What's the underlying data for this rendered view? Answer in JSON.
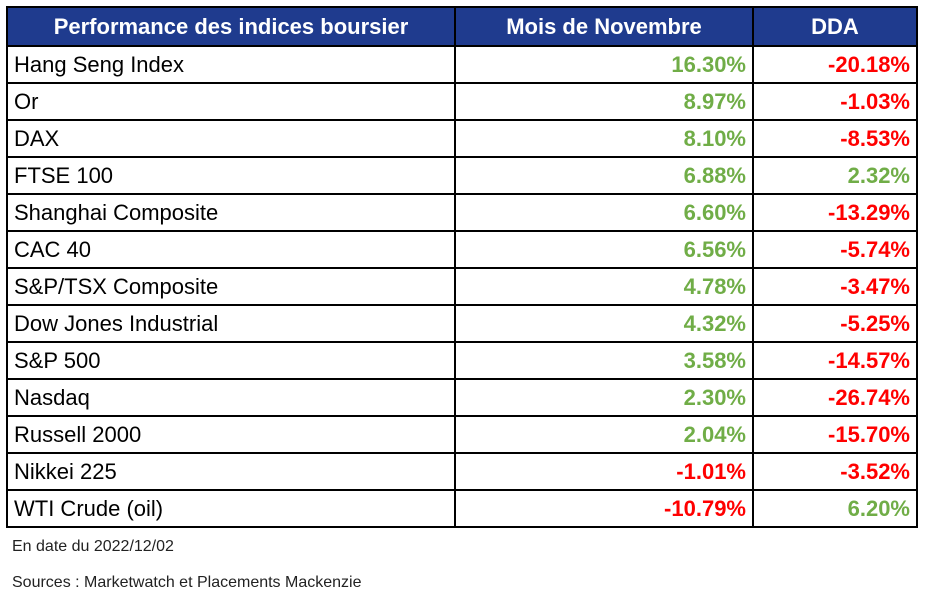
{
  "chart_data": {
    "type": "table",
    "columns": [
      "Performance des indices boursier",
      "Mois de Novembre",
      "DDA"
    ],
    "rows": [
      {
        "name": "Hang Seng Index",
        "month": "16.30%",
        "ytd": "-20.18%"
      },
      {
        "name": "Or",
        "month": "8.97%",
        "ytd": "-1.03%"
      },
      {
        "name": "DAX",
        "month": "8.10%",
        "ytd": "-8.53%"
      },
      {
        "name": "FTSE 100",
        "month": "6.88%",
        "ytd": "2.32%"
      },
      {
        "name": "Shanghai Composite",
        "month": "6.60%",
        "ytd": "-13.29%"
      },
      {
        "name": "CAC 40",
        "month": "6.56%",
        "ytd": "-5.74%"
      },
      {
        "name": "S&P/TSX Composite",
        "month": "4.78%",
        "ytd": "-3.47%"
      },
      {
        "name": "Dow Jones Industrial",
        "month": "4.32%",
        "ytd": "-5.25%"
      },
      {
        "name": "S&P 500",
        "month": "3.58%",
        "ytd": "-14.57%"
      },
      {
        "name": "Nasdaq",
        "month": "2.30%",
        "ytd": "-26.74%"
      },
      {
        "name": "Russell 2000",
        "month": "2.04%",
        "ytd": "-15.70%"
      },
      {
        "name": "Nikkei 225",
        "month": "-1.01%",
        "ytd": "-3.52%"
      },
      {
        "name": "WTI Crude (oil)",
        "month": "-10.79%",
        "ytd": "6.20%"
      }
    ],
    "colors": {
      "header_bg": "#1f3b8e",
      "header_text": "#ffffff",
      "positive": "#70ad47",
      "negative": "#ff0000"
    }
  },
  "footnotes": {
    "date": "En date du 2022/12/02",
    "sources": "Sources : Marketwatch et Placements Mackenzie"
  }
}
